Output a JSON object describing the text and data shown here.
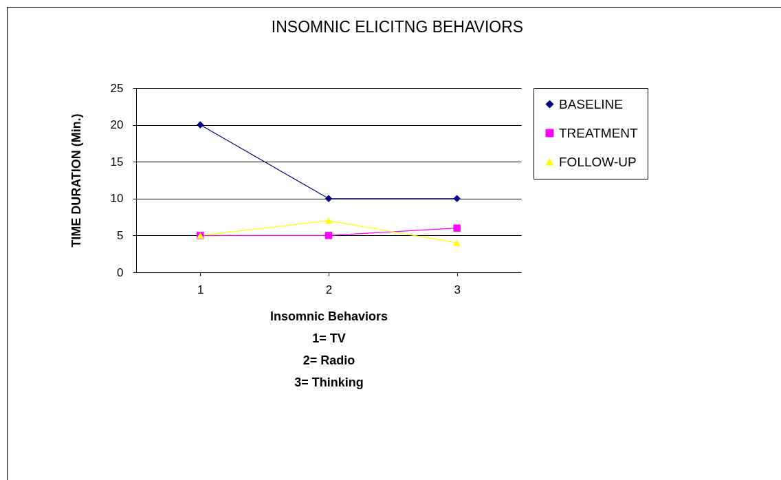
{
  "chart_data": {
    "type": "line",
    "title": "INSOMNIC ELICITNG BEHAVIORS",
    "xlabel": "Insomnic Behaviors",
    "ylabel": "TIME DURATION (Min.)",
    "annotations": [
      "1= TV",
      "2= Radio",
      "3= Thinking"
    ],
    "categories": [
      "1",
      "2",
      "3"
    ],
    "series": [
      {
        "name": "BASELINE",
        "color": "#000080",
        "marker": "diamond",
        "values": [
          20,
          10,
          10
        ]
      },
      {
        "name": "TREATMENT",
        "color": "#ff00ff",
        "marker": "square",
        "values": [
          5,
          5,
          6
        ]
      },
      {
        "name": "FOLLOW-UP",
        "color": "#ffff00",
        "marker": "triangle",
        "values": [
          5,
          7,
          4
        ]
      }
    ],
    "ylim": [
      0,
      25
    ],
    "yticks": [
      0,
      5,
      10,
      15,
      20,
      25
    ],
    "grid": "y",
    "legend": "right"
  }
}
